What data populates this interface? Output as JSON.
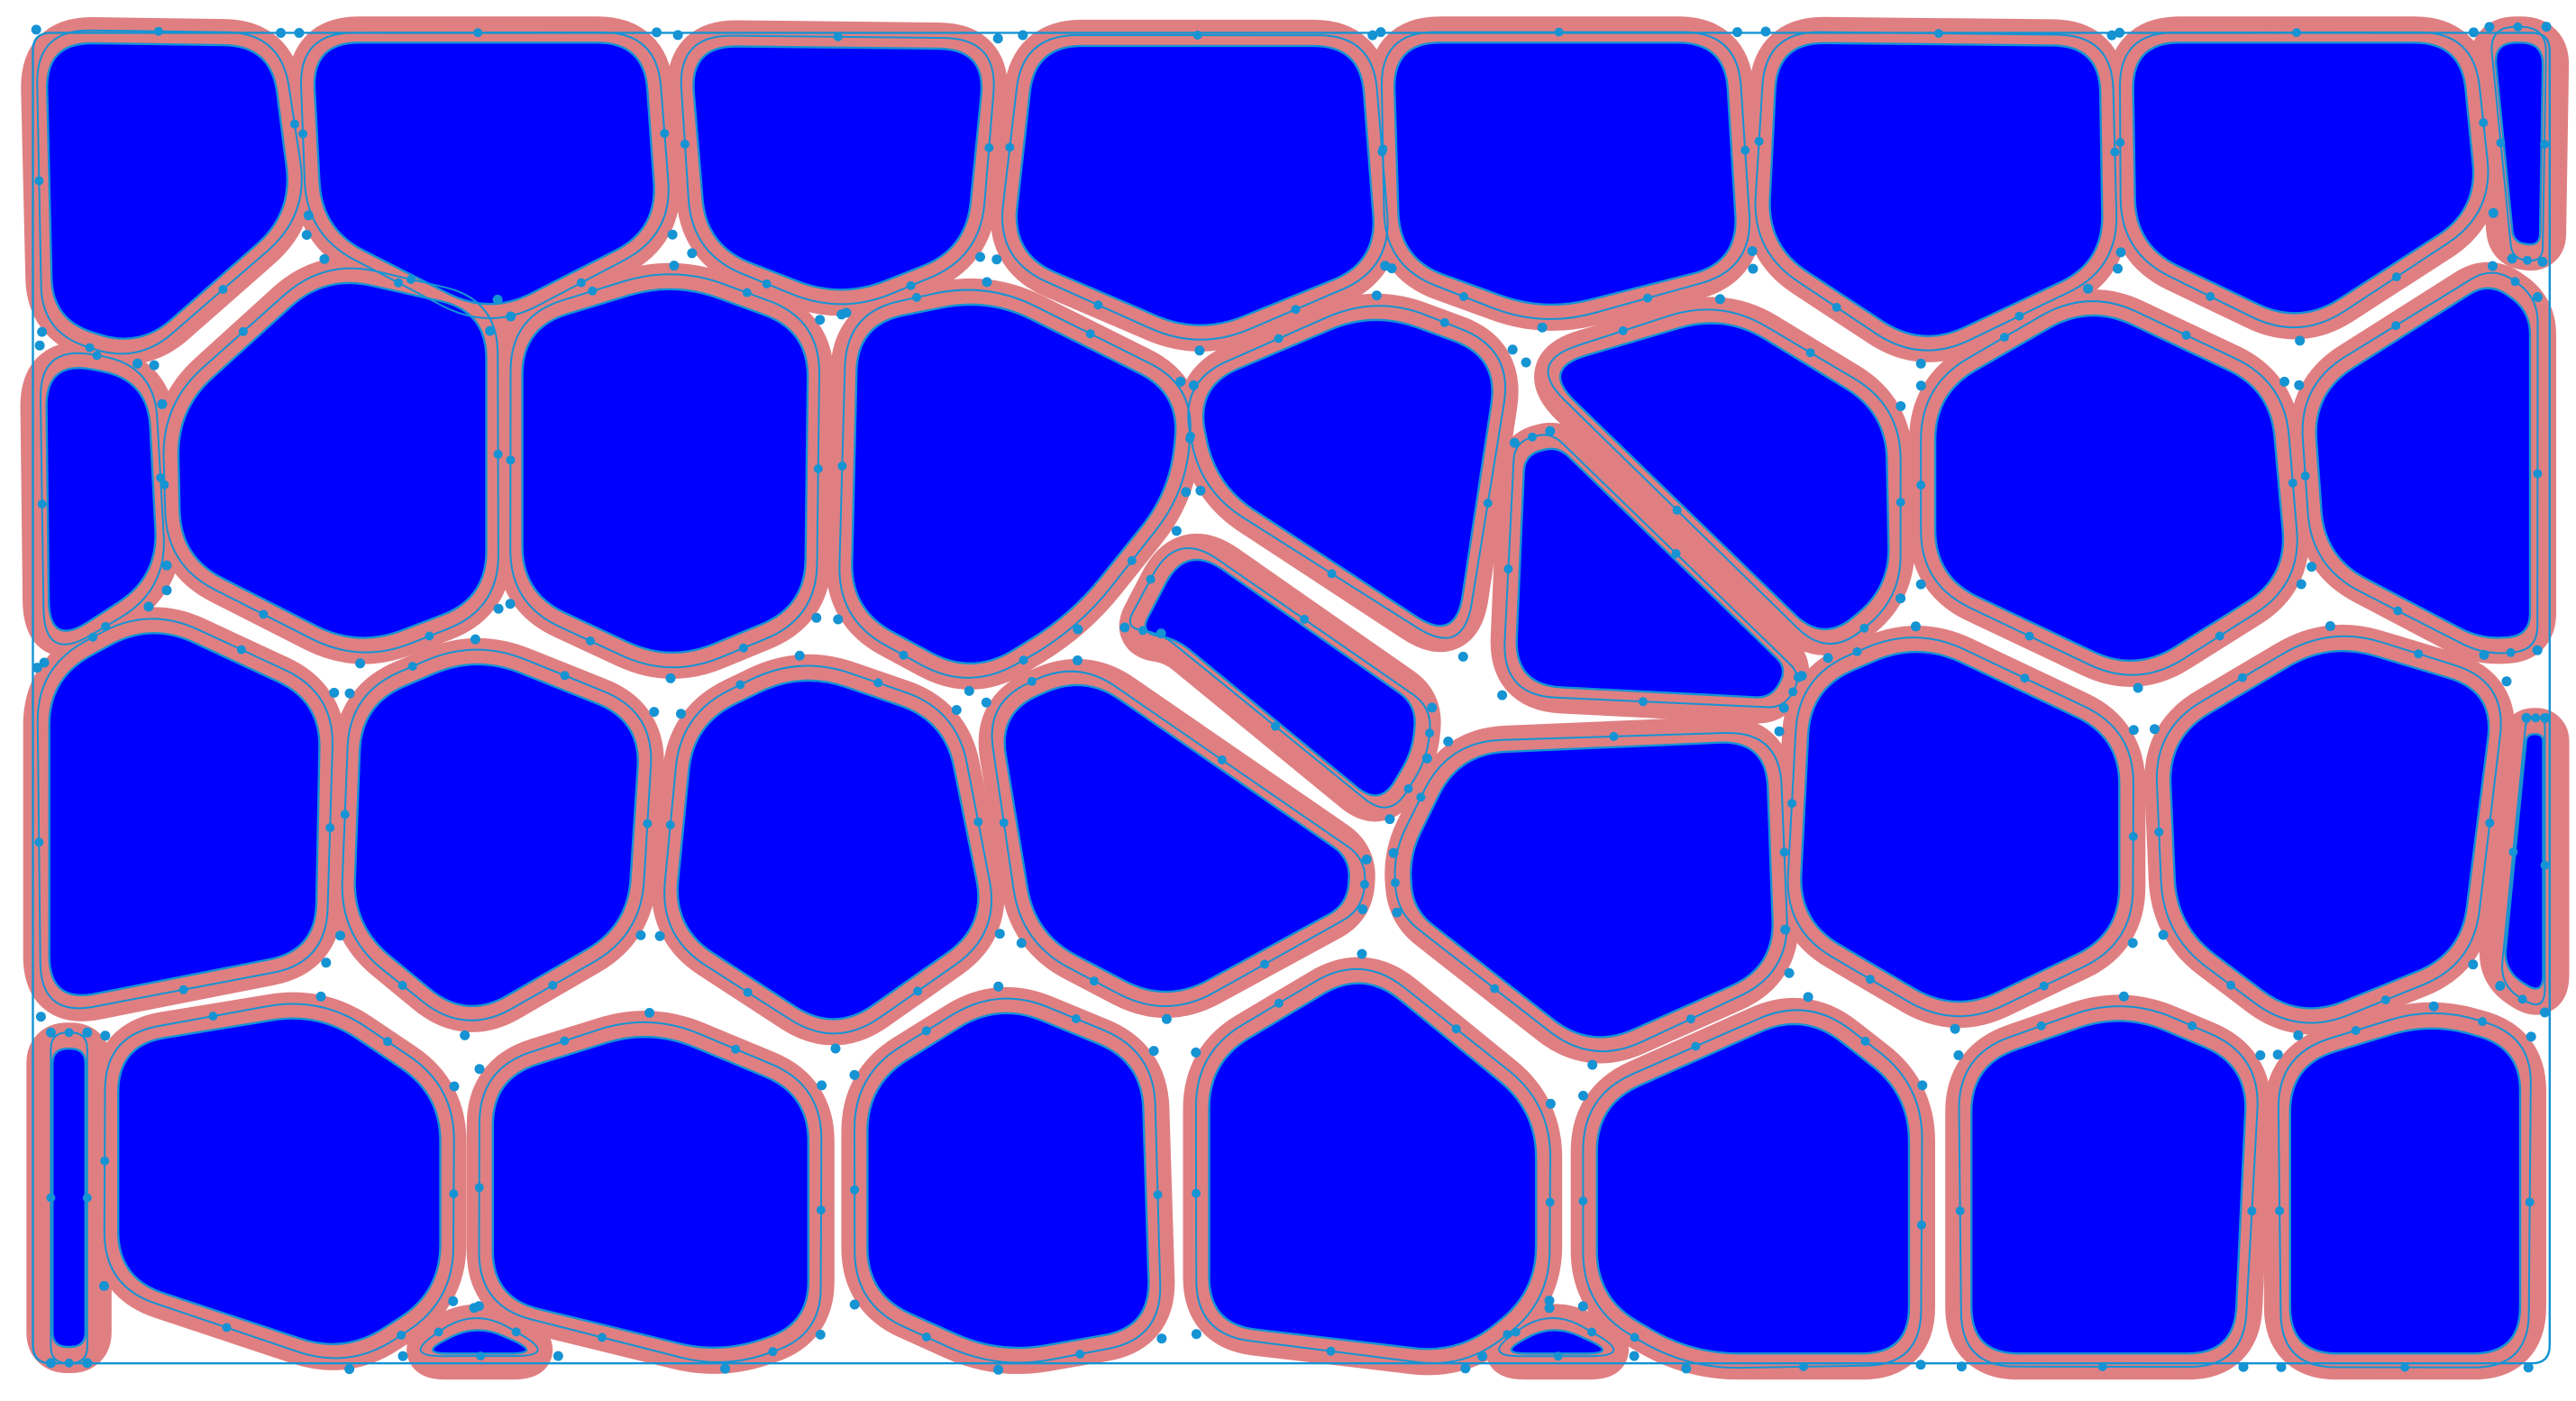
{
  "colors": {
    "background": "#ffffff",
    "cell_fill": "#0000ff",
    "outline": "#e07f82",
    "path": "#1593d3",
    "node": "#1593d3"
  },
  "icons": {
    "node": "circle-dot"
  }
}
